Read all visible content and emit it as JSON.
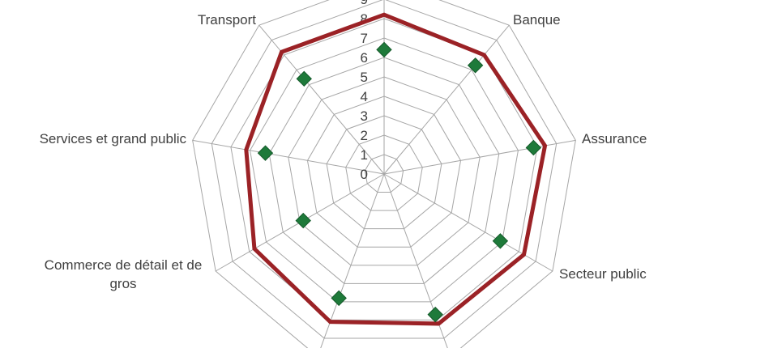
{
  "chart_data": {
    "type": "radar",
    "title": "",
    "categories": [
      "Banque",
      "Assurance",
      "Secteur public",
      "",
      "",
      "Commerce de détail et de gros",
      "Services et grand public",
      "Transport"
    ],
    "r_ticks": [
      0,
      1,
      2,
      3,
      4,
      5,
      6,
      7,
      8,
      9
    ],
    "rlim": [
      0,
      10
    ],
    "grid": true,
    "series": [
      {
        "values": [
          8,
          8.4,
          8.3,
          8.2,
          8.1,
          7.7,
          7.2,
          8.2
        ],
        "color": "#9b2226",
        "marker": "none"
      },
      {
        "values": [
          7.3,
          7.8,
          6.9,
          7.7,
          6.8,
          4.8,
          6.2,
          6.4
        ],
        "color": "#1e7a3a",
        "marker": "diamond",
        "line": "none"
      }
    ]
  }
}
